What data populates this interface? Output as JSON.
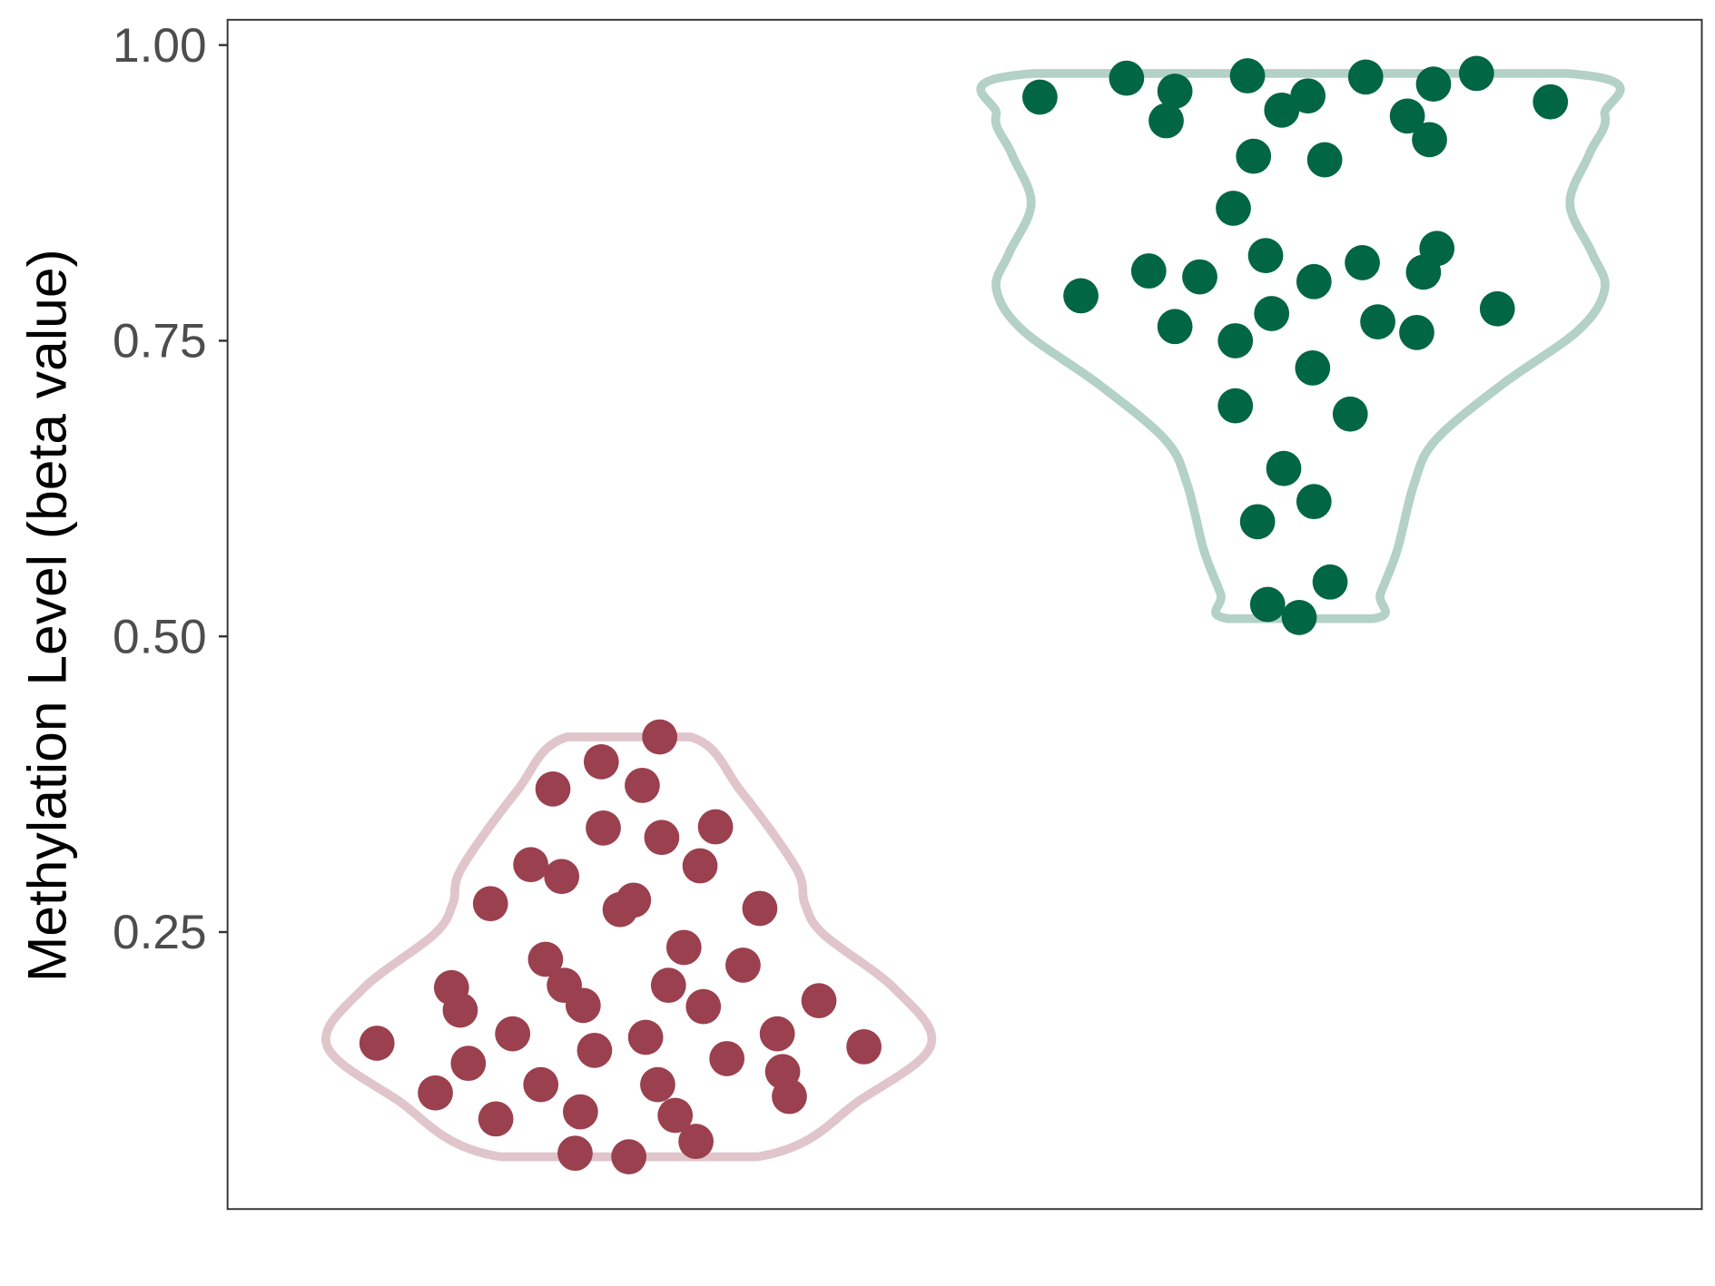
{
  "chart_data": {
    "type": "scatter",
    "subtype": "violin-with-jittered-points",
    "title": "",
    "xlabel": "",
    "ylabel": "Methylation Level (beta value)",
    "ylim": [
      0.0,
      1.02
    ],
    "yticks": [
      {
        "value": 0.25,
        "label": "0.25"
      },
      {
        "value": 0.5,
        "label": "0.50"
      },
      {
        "value": 0.75,
        "label": "0.75"
      },
      {
        "value": 1.0,
        "label": "1.00"
      }
    ],
    "grid": false,
    "legend": "none",
    "series": [
      {
        "color": "#9b404e",
        "outline_color": "#e0c5ca",
        "category_position": 1,
        "violin_profile": [
          [
            0.415,
            0.092
          ],
          [
            0.369,
            0.167
          ],
          [
            0.304,
            0.249
          ],
          [
            0.274,
            0.262
          ],
          [
            0.248,
            0.29
          ],
          [
            0.202,
            0.396
          ],
          [
            0.155,
            0.45
          ],
          [
            0.109,
            0.347
          ],
          [
            0.06,
            0.191
          ]
        ],
        "points": [
          [
            0.625,
            0.156
          ],
          [
            0.712,
            0.114
          ],
          [
            0.761,
            0.139
          ],
          [
            0.736,
            0.203
          ],
          [
            0.749,
            0.184
          ],
          [
            0.802,
            0.092
          ],
          [
            0.827,
            0.164
          ],
          [
            0.869,
            0.121
          ],
          [
            0.928,
            0.098
          ],
          [
            0.92,
            0.063
          ],
          [
            1.0,
            0.06
          ],
          [
            0.949,
            0.15
          ],
          [
            0.932,
            0.188
          ],
          [
            0.904,
            0.205
          ],
          [
            0.876,
            0.227
          ],
          [
            0.794,
            0.274
          ],
          [
            0.854,
            0.307
          ],
          [
            0.9,
            0.297
          ],
          [
            0.887,
            0.371
          ],
          [
            0.959,
            0.394
          ],
          [
            0.962,
            0.338
          ],
          [
            1.02,
            0.374
          ],
          [
            1.046,
            0.415
          ],
          [
            1.049,
            0.33
          ],
          [
            1.129,
            0.339
          ],
          [
            1.106,
            0.306
          ],
          [
            0.987,
            0.269
          ],
          [
            1.007,
            0.277
          ],
          [
            1.082,
            0.237
          ],
          [
            1.059,
            0.205
          ],
          [
            1.111,
            0.187
          ],
          [
            1.17,
            0.222
          ],
          [
            1.195,
            0.27
          ],
          [
            1.025,
            0.161
          ],
          [
            1.043,
            0.121
          ],
          [
            1.069,
            0.095
          ],
          [
            1.1,
            0.073
          ],
          [
            1.146,
            0.143
          ],
          [
            1.221,
            0.164
          ],
          [
            1.229,
            0.132
          ],
          [
            1.239,
            0.111
          ],
          [
            1.283,
            0.192
          ],
          [
            1.35,
            0.153
          ]
        ]
      },
      {
        "color": "#006644",
        "outline_color": "#b3d1c6",
        "category_position": 2,
        "violin_profile": [
          [
            0.976,
            0.396
          ],
          [
            0.941,
            0.453
          ],
          [
            0.908,
            0.43
          ],
          [
            0.866,
            0.401
          ],
          [
            0.824,
            0.434
          ],
          [
            0.794,
            0.453
          ],
          [
            0.759,
            0.414
          ],
          [
            0.713,
            0.3
          ],
          [
            0.666,
            0.201
          ],
          [
            0.629,
            0.169
          ],
          [
            0.573,
            0.144
          ],
          [
            0.536,
            0.119
          ],
          [
            0.515,
            0.108
          ]
        ],
        "points": [
          [
            1.612,
            0.956
          ],
          [
            1.741,
            0.972
          ],
          [
            1.813,
            0.961
          ],
          [
            1.8,
            0.936
          ],
          [
            1.921,
            0.974
          ],
          [
            1.972,
            0.945
          ],
          [
            2.011,
            0.957
          ],
          [
            2.097,
            0.973
          ],
          [
            2.159,
            0.94
          ],
          [
            2.198,
            0.967
          ],
          [
            2.192,
            0.92
          ],
          [
            2.262,
            0.976
          ],
          [
            2.372,
            0.952
          ],
          [
            1.93,
            0.906
          ],
          [
            2.036,
            0.903
          ],
          [
            1.9,
            0.862
          ],
          [
            1.673,
            0.788
          ],
          [
            1.774,
            0.809
          ],
          [
            1.85,
            0.804
          ],
          [
            1.948,
            0.822
          ],
          [
            2.02,
            0.8
          ],
          [
            2.092,
            0.816
          ],
          [
            2.183,
            0.808
          ],
          [
            2.203,
            0.828
          ],
          [
            2.293,
            0.777
          ],
          [
            1.813,
            0.762
          ],
          [
            1.903,
            0.75
          ],
          [
            1.957,
            0.773
          ],
          [
            2.115,
            0.766
          ],
          [
            2.173,
            0.757
          ],
          [
            2.018,
            0.727
          ],
          [
            1.903,
            0.695
          ],
          [
            2.074,
            0.688
          ],
          [
            1.975,
            0.642
          ],
          [
            2.02,
            0.614
          ],
          [
            1.936,
            0.597
          ],
          [
            2.044,
            0.546
          ],
          [
            1.951,
            0.527
          ],
          [
            1.998,
            0.516
          ]
        ]
      }
    ]
  }
}
